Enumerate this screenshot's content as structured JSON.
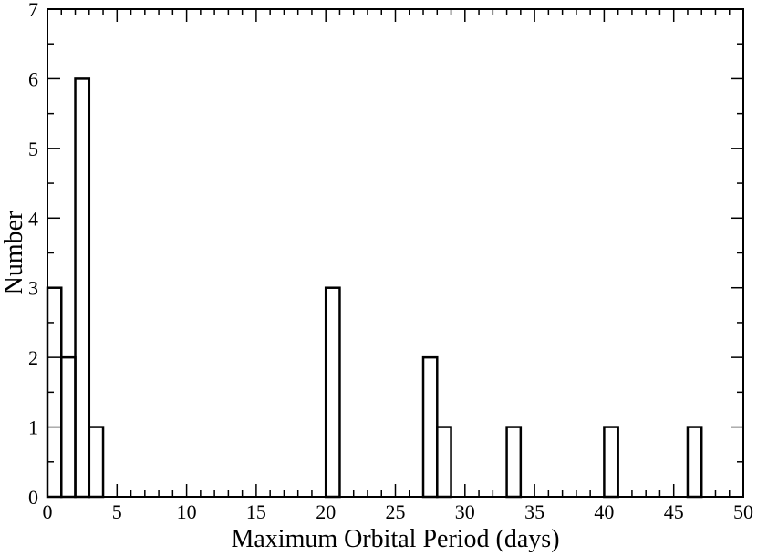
{
  "chart_data": {
    "type": "bar",
    "title": "",
    "xlabel": "Maximum Orbital Period (days)",
    "ylabel": "Number",
    "xlim": [
      0,
      50
    ],
    "ylim": [
      0,
      7
    ],
    "x_ticks": [
      0,
      5,
      10,
      15,
      20,
      25,
      30,
      35,
      40,
      45,
      50
    ],
    "y_ticks": [
      0,
      1,
      2,
      3,
      4,
      5,
      6,
      7
    ],
    "x_minor_step": 1,
    "y_minor_step": 0.5,
    "bin_width": 1,
    "bins": [
      {
        "start": 0,
        "end": 1,
        "count": 3
      },
      {
        "start": 1,
        "end": 2,
        "count": 2
      },
      {
        "start": 2,
        "end": 3,
        "count": 6
      },
      {
        "start": 3,
        "end": 4,
        "count": 1
      },
      {
        "start": 20,
        "end": 21,
        "count": 3
      },
      {
        "start": 27,
        "end": 28,
        "count": 2
      },
      {
        "start": 28,
        "end": 29,
        "count": 1
      },
      {
        "start": 33,
        "end": 34,
        "count": 1
      },
      {
        "start": 40,
        "end": 41,
        "count": 1
      },
      {
        "start": 46,
        "end": 47,
        "count": 1
      }
    ],
    "grid": false,
    "legend": "none"
  }
}
